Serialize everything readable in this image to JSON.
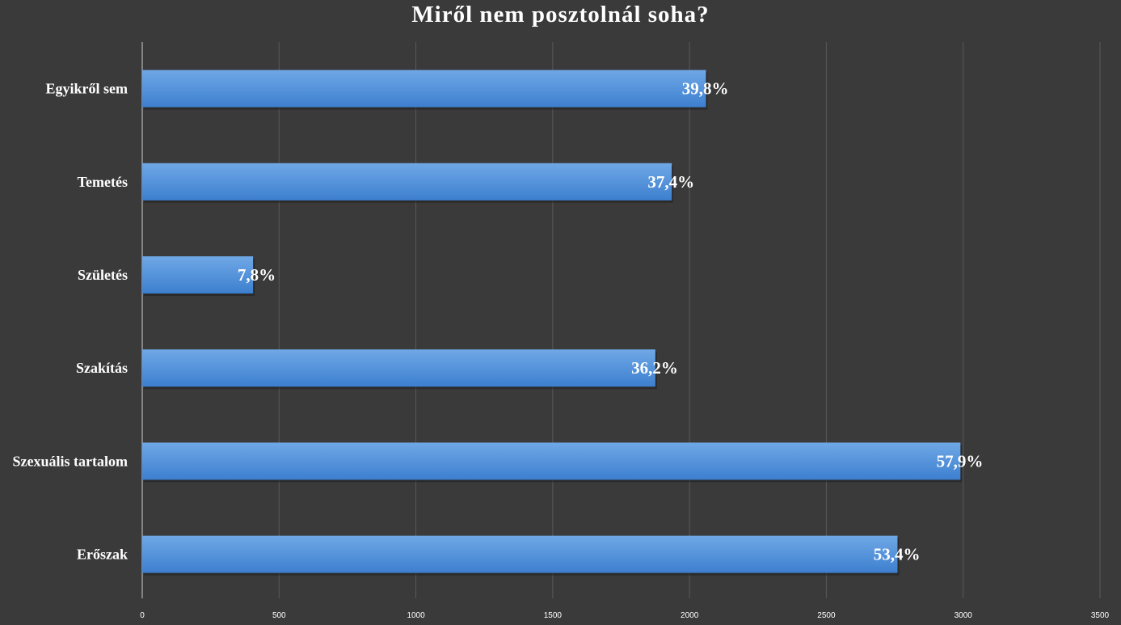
{
  "chart_data": {
    "type": "bar",
    "orientation": "horizontal",
    "title": "Miről nem posztolnál soha?",
    "categories": [
      "Egyikről sem",
      "Temetés",
      "Születés",
      "Szakítás",
      "Szexuális tartalom",
      "Erőszak"
    ],
    "values": [
      2060,
      1935,
      405,
      1875,
      2990,
      2760
    ],
    "data_labels": [
      "39,8%",
      "37,4%",
      "7,8%",
      "36,2%",
      "57,9%",
      "53,4%"
    ],
    "xlim": [
      0,
      3500
    ],
    "x_ticks": [
      0,
      500,
      1000,
      1500,
      2000,
      2500,
      3000,
      3500
    ],
    "x_tick_labels": [
      "0",
      "500",
      "1000",
      "1500",
      "2000",
      "2500",
      "3000",
      "3500"
    ],
    "grid": true,
    "legend": "none",
    "colors": {
      "background": "#3a3a3a",
      "bar_top": "#6fa8e6",
      "bar_bottom": "#3d7fcf",
      "gridline": "#595959",
      "axis": "#cfcfcf",
      "text": "#ffffff"
    }
  }
}
